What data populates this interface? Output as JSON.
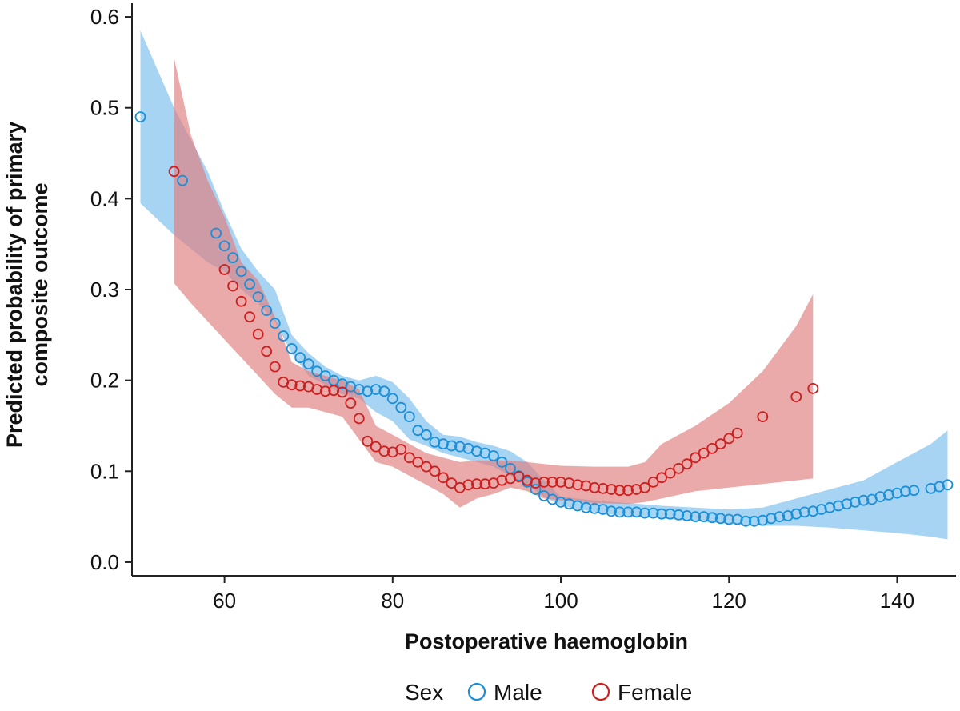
{
  "chart_data": {
    "type": "scatter",
    "xlabel": "Postoperative haemoglobin",
    "ylabel_lines": [
      "Predicted probability of primary",
      "composite outcome"
    ],
    "xlim": [
      49,
      147
    ],
    "ylim": [
      -0.015,
      0.615
    ],
    "xticks": [
      60,
      80,
      100,
      120,
      140
    ],
    "yticks": [
      0.0,
      0.1,
      0.2,
      0.3,
      0.4,
      0.5,
      0.6
    ],
    "yticks_labels": [
      "0.0",
      "0.1",
      "0.2",
      "0.3",
      "0.4",
      "0.5",
      "0.6"
    ],
    "grid": false,
    "legend": {
      "title": "Sex",
      "position": "bottom"
    },
    "series": [
      {
        "name": "Male",
        "color": "#1a8fd8",
        "band_color": "#8ac6ef",
        "x": [
          50,
          55,
          59,
          60,
          61,
          62,
          63,
          64,
          65,
          66,
          67,
          68,
          69,
          70,
          71,
          72,
          73,
          74,
          75,
          76,
          77,
          78,
          79,
          80,
          81,
          82,
          83,
          84,
          85,
          86,
          87,
          88,
          89,
          90,
          91,
          92,
          93,
          94,
          95,
          96,
          97,
          98,
          99,
          100,
          101,
          102,
          103,
          104,
          105,
          106,
          107,
          108,
          109,
          110,
          111,
          112,
          113,
          114,
          115,
          116,
          117,
          118,
          119,
          120,
          121,
          122,
          123,
          124,
          125,
          126,
          127,
          128,
          129,
          130,
          131,
          132,
          133,
          134,
          135,
          136,
          137,
          138,
          139,
          140,
          141,
          142,
          144,
          145,
          146
        ],
        "y": [
          0.49,
          0.42,
          0.362,
          0.348,
          0.335,
          0.32,
          0.306,
          0.292,
          0.277,
          0.263,
          0.249,
          0.235,
          0.225,
          0.218,
          0.21,
          0.205,
          0.2,
          0.196,
          0.193,
          0.19,
          0.188,
          0.19,
          0.188,
          0.18,
          0.17,
          0.16,
          0.145,
          0.14,
          0.132,
          0.13,
          0.128,
          0.127,
          0.125,
          0.122,
          0.12,
          0.117,
          0.11,
          0.103,
          0.095,
          0.088,
          0.08,
          0.073,
          0.069,
          0.066,
          0.064,
          0.062,
          0.06,
          0.059,
          0.058,
          0.056,
          0.055,
          0.055,
          0.055,
          0.054,
          0.054,
          0.053,
          0.053,
          0.052,
          0.051,
          0.05,
          0.05,
          0.049,
          0.048,
          0.047,
          0.047,
          0.045,
          0.045,
          0.046,
          0.048,
          0.05,
          0.051,
          0.053,
          0.055,
          0.056,
          0.058,
          0.06,
          0.062,
          0.064,
          0.066,
          0.068,
          0.069,
          0.072,
          0.074,
          0.076,
          0.078,
          0.079,
          0.081,
          0.083,
          0.085
        ],
        "band_x": [
          50,
          54,
          58,
          60,
          62,
          64,
          66,
          68,
          70,
          72,
          74,
          76,
          78,
          80,
          82,
          84,
          86,
          88,
          90,
          92,
          94,
          96,
          98,
          100,
          104,
          108,
          112,
          116,
          120,
          124,
          128,
          132,
          136,
          140,
          144,
          146
        ],
        "band_lower": [
          0.395,
          0.36,
          0.33,
          0.32,
          0.3,
          0.285,
          0.265,
          0.23,
          0.205,
          0.195,
          0.185,
          0.18,
          0.165,
          0.155,
          0.135,
          0.128,
          0.12,
          0.115,
          0.11,
          0.105,
          0.095,
          0.085,
          0.072,
          0.062,
          0.055,
          0.05,
          0.048,
          0.045,
          0.042,
          0.04,
          0.04,
          0.038,
          0.035,
          0.032,
          0.028,
          0.025
        ],
        "band_upper": [
          0.585,
          0.5,
          0.43,
          0.385,
          0.345,
          0.32,
          0.3,
          0.25,
          0.23,
          0.215,
          0.205,
          0.2,
          0.205,
          0.198,
          0.18,
          0.155,
          0.14,
          0.138,
          0.132,
          0.128,
          0.122,
          0.11,
          0.09,
          0.072,
          0.068,
          0.065,
          0.062,
          0.06,
          0.058,
          0.06,
          0.07,
          0.08,
          0.09,
          0.11,
          0.13,
          0.145
        ]
      },
      {
        "name": "Female",
        "color": "#cc1f1f",
        "band_color": "#e07d7d",
        "x": [
          54,
          60,
          61,
          62,
          63,
          64,
          65,
          66,
          67,
          68,
          69,
          70,
          71,
          72,
          73,
          74,
          75,
          76,
          77,
          78,
          79,
          80,
          81,
          82,
          83,
          84,
          85,
          86,
          87,
          88,
          89,
          90,
          91,
          92,
          93,
          94,
          95,
          96,
          97,
          98,
          99,
          100,
          101,
          102,
          103,
          104,
          105,
          106,
          107,
          108,
          109,
          110,
          111,
          112,
          113,
          114,
          115,
          116,
          117,
          118,
          119,
          120,
          121,
          124,
          128,
          130
        ],
        "y": [
          0.43,
          0.322,
          0.304,
          0.287,
          0.27,
          0.251,
          0.232,
          0.215,
          0.198,
          0.195,
          0.194,
          0.193,
          0.19,
          0.188,
          0.189,
          0.187,
          0.175,
          0.158,
          0.133,
          0.127,
          0.122,
          0.121,
          0.124,
          0.115,
          0.11,
          0.105,
          0.1,
          0.093,
          0.087,
          0.082,
          0.085,
          0.086,
          0.086,
          0.087,
          0.09,
          0.092,
          0.094,
          0.09,
          0.087,
          0.088,
          0.088,
          0.088,
          0.087,
          0.085,
          0.084,
          0.082,
          0.081,
          0.08,
          0.079,
          0.079,
          0.08,
          0.082,
          0.088,
          0.093,
          0.098,
          0.103,
          0.108,
          0.115,
          0.12,
          0.125,
          0.13,
          0.136,
          0.142,
          0.16,
          0.182,
          0.191
        ],
        "band_x": [
          54,
          56,
          58,
          60,
          62,
          64,
          66,
          68,
          70,
          72,
          74,
          76,
          78,
          80,
          82,
          84,
          86,
          88,
          90,
          92,
          94,
          96,
          98,
          100,
          104,
          108,
          110,
          112,
          116,
          120,
          124,
          128,
          130
        ],
        "band_lower": [
          0.307,
          0.285,
          0.265,
          0.245,
          0.225,
          0.205,
          0.185,
          0.17,
          0.17,
          0.165,
          0.16,
          0.135,
          0.11,
          0.105,
          0.095,
          0.085,
          0.075,
          0.06,
          0.07,
          0.075,
          0.082,
          0.078,
          0.07,
          0.068,
          0.065,
          0.064,
          0.066,
          0.07,
          0.078,
          0.082,
          0.086,
          0.09,
          0.092
        ],
        "band_upper": [
          0.555,
          0.47,
          0.42,
          0.38,
          0.33,
          0.31,
          0.27,
          0.22,
          0.21,
          0.205,
          0.2,
          0.19,
          0.15,
          0.14,
          0.13,
          0.12,
          0.115,
          0.11,
          0.112,
          0.112,
          0.112,
          0.11,
          0.108,
          0.106,
          0.105,
          0.105,
          0.11,
          0.13,
          0.15,
          0.175,
          0.21,
          0.26,
          0.295
        ]
      }
    ]
  }
}
